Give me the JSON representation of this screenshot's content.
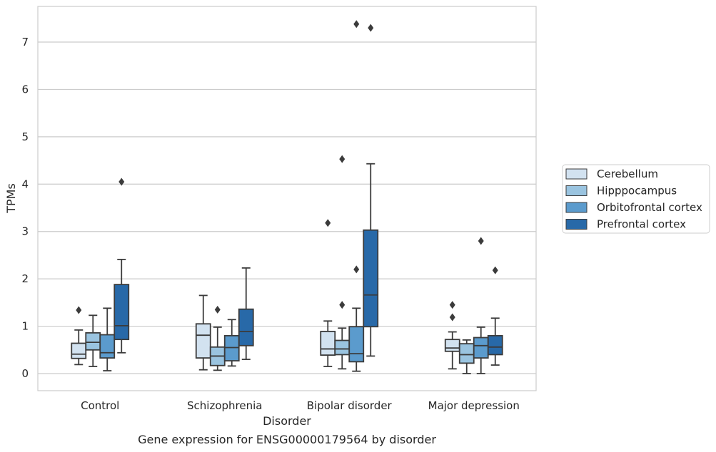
{
  "caption": "Gene expression for ENSG00000179564 by disorder",
  "chart_data": {
    "type": "box",
    "title": "",
    "xlabel": "Disorder",
    "ylabel": "TPMs",
    "categories": [
      "Control",
      "Schizophrenia",
      "Bipolar disorder",
      "Major depression"
    ],
    "ylim": [
      -0.35,
      7.75
    ],
    "yticks": [
      0,
      1,
      2,
      3,
      4,
      5,
      6,
      7
    ],
    "grid": "horizontal",
    "legend_position": "right",
    "series": [
      {
        "name": "Cerebellum",
        "color": "#d2e2f0",
        "boxes": [
          {
            "whisker_low": 0.19,
            "q1": 0.32,
            "median": 0.41,
            "q3": 0.64,
            "whisker_high": 0.92,
            "outliers": [
              1.34
            ]
          },
          {
            "whisker_low": 0.08,
            "q1": 0.33,
            "median": 0.81,
            "q3": 1.05,
            "whisker_high": 1.65,
            "outliers": []
          },
          {
            "whisker_low": 0.15,
            "q1": 0.39,
            "median": 0.52,
            "q3": 0.89,
            "whisker_high": 1.11,
            "outliers": [
              3.18
            ]
          },
          {
            "whisker_low": 0.1,
            "q1": 0.47,
            "median": 0.54,
            "q3": 0.72,
            "whisker_high": 0.88,
            "outliers": [
              1.19,
              1.45
            ]
          }
        ]
      },
      {
        "name": "Hipppocampus",
        "color": "#9ac4e0",
        "boxes": [
          {
            "whisker_low": 0.15,
            "q1": 0.5,
            "median": 0.66,
            "q3": 0.86,
            "whisker_high": 1.23,
            "outliers": []
          },
          {
            "whisker_low": 0.07,
            "q1": 0.17,
            "median": 0.37,
            "q3": 0.56,
            "whisker_high": 0.98,
            "outliers": [
              1.35
            ]
          },
          {
            "whisker_low": 0.1,
            "q1": 0.4,
            "median": 0.52,
            "q3": 0.7,
            "whisker_high": 0.96,
            "outliers": [
              1.45,
              4.53
            ]
          },
          {
            "whisker_low": 0.0,
            "q1": 0.22,
            "median": 0.4,
            "q3": 0.63,
            "whisker_high": 0.71,
            "outliers": []
          }
        ]
      },
      {
        "name": "Orbitofrontal cortex",
        "color": "#5b9bcd",
        "boxes": [
          {
            "whisker_low": 0.06,
            "q1": 0.33,
            "median": 0.44,
            "q3": 0.82,
            "whisker_high": 1.38,
            "outliers": []
          },
          {
            "whisker_low": 0.16,
            "q1": 0.27,
            "median": 0.55,
            "q3": 0.8,
            "whisker_high": 1.14,
            "outliers": []
          },
          {
            "whisker_low": 0.05,
            "q1": 0.25,
            "median": 0.42,
            "q3": 0.99,
            "whisker_high": 1.38,
            "outliers": [
              2.2,
              7.38
            ]
          },
          {
            "whisker_low": 0.0,
            "q1": 0.33,
            "median": 0.59,
            "q3": 0.76,
            "whisker_high": 0.98,
            "outliers": [
              2.8
            ]
          }
        ]
      },
      {
        "name": "Prefrontal cortex",
        "color": "#2869a8",
        "boxes": [
          {
            "whisker_low": 0.44,
            "q1": 0.72,
            "median": 1.01,
            "q3": 1.88,
            "whisker_high": 2.41,
            "outliers": [
              4.05
            ]
          },
          {
            "whisker_low": 0.3,
            "q1": 0.59,
            "median": 0.89,
            "q3": 1.36,
            "whisker_high": 2.23,
            "outliers": []
          },
          {
            "whisker_low": 0.37,
            "q1": 0.99,
            "median": 1.66,
            "q3": 3.03,
            "whisker_high": 4.43,
            "outliers": [
              7.3
            ]
          },
          {
            "whisker_low": 0.18,
            "q1": 0.4,
            "median": 0.56,
            "q3": 0.8,
            "whisker_high": 1.17,
            "outliers": [
              2.18
            ]
          }
        ]
      }
    ]
  }
}
